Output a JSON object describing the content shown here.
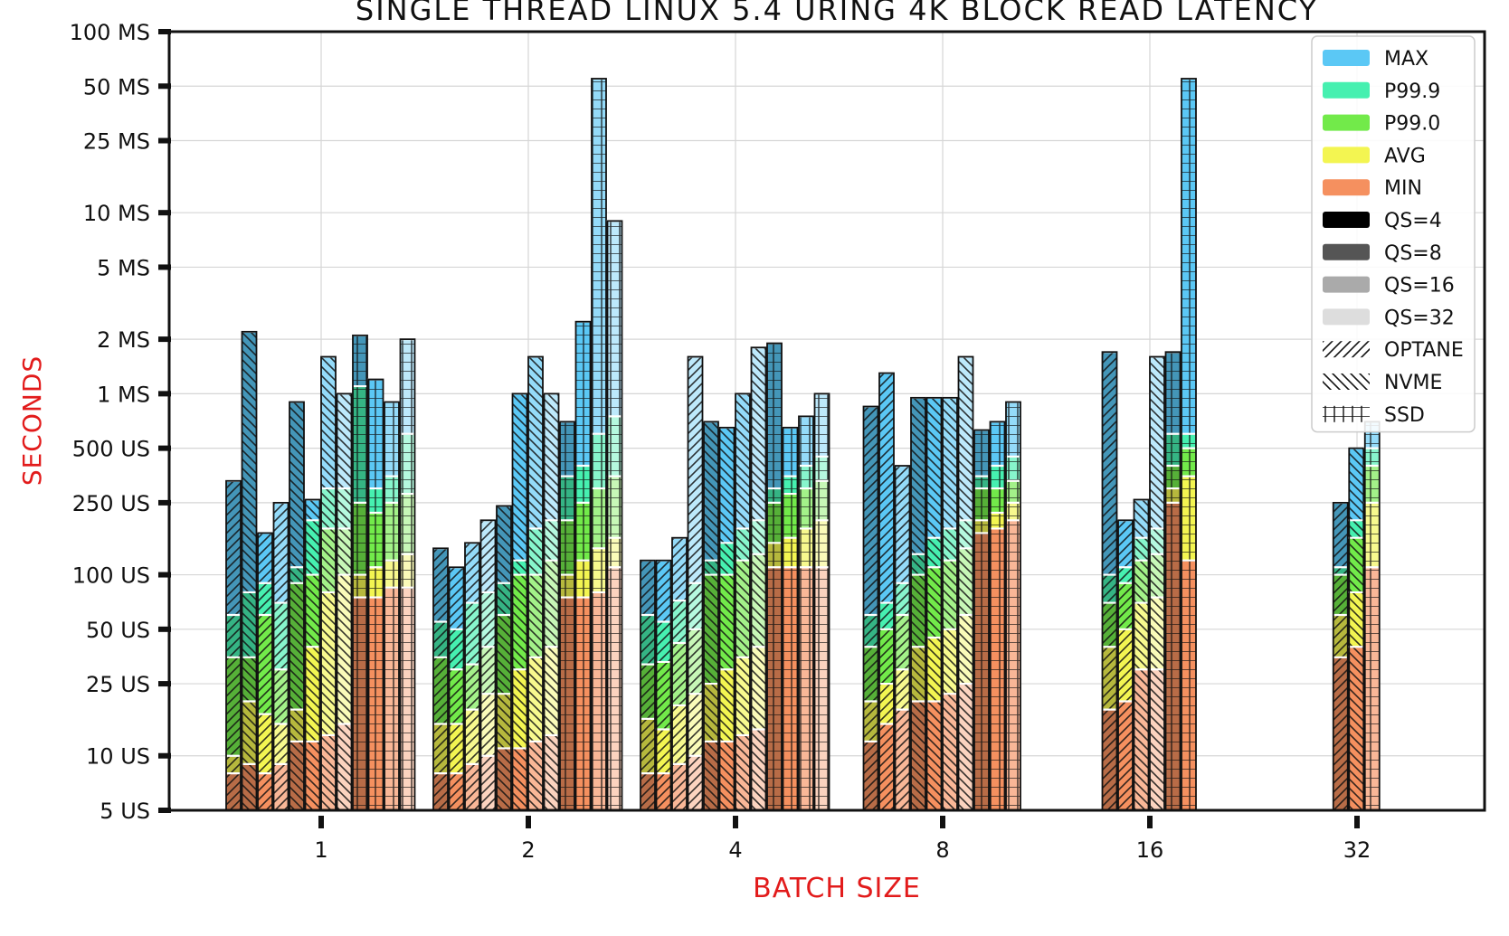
{
  "chart_data": {
    "type": "bar",
    "title": "SINGLE THREAD LINUX 5.4 URING 4K BLOCK READ LATENCY",
    "xlabel": "BATCH SIZE",
    "ylabel": "SECONDS",
    "y_scale": "log",
    "ylim": [
      5e-06,
      0.1
    ],
    "y_ticks": [
      {
        "value": 0.1,
        "label": "100 MS"
      },
      {
        "value": 0.05,
        "label": "50 MS"
      },
      {
        "value": 0.025,
        "label": "25 MS"
      },
      {
        "value": 0.01,
        "label": "10 MS"
      },
      {
        "value": 0.005,
        "label": "5 MS"
      },
      {
        "value": 0.002,
        "label": "2 MS"
      },
      {
        "value": 0.001,
        "label": "1 MS"
      },
      {
        "value": 0.0005,
        "label": "500 US"
      },
      {
        "value": 0.00025,
        "label": "250 US"
      },
      {
        "value": 0.0001,
        "label": "100 US"
      },
      {
        "value": 5e-05,
        "label": "50 US"
      },
      {
        "value": 2.5e-05,
        "label": "25 US"
      },
      {
        "value": 1e-05,
        "label": "10 US"
      },
      {
        "value": 5e-06,
        "label": "5 US"
      }
    ],
    "categories": [
      "1",
      "2",
      "4",
      "8",
      "16",
      "32"
    ],
    "grid": true,
    "legend_position": "top-right",
    "legend": [
      {
        "label": "MAX",
        "kind": "color",
        "color": "#5bc8f5"
      },
      {
        "label": "P99.9",
        "kind": "color",
        "color": "#46f0b0"
      },
      {
        "label": "P99.0",
        "kind": "color",
        "color": "#72ea4a"
      },
      {
        "label": "AVG",
        "kind": "color",
        "color": "#f3f551"
      },
      {
        "label": "MIN",
        "kind": "color",
        "color": "#f5905f"
      },
      {
        "label": "QS=4",
        "kind": "color",
        "color": "#000000"
      },
      {
        "label": "QS=8",
        "kind": "color",
        "color": "#555555"
      },
      {
        "label": "QS=16",
        "kind": "color",
        "color": "#aaaaaa"
      },
      {
        "label": "QS=32",
        "kind": "color",
        "color": "#dddddd"
      },
      {
        "label": "OPTANE",
        "kind": "hatch",
        "hatch": "fwd"
      },
      {
        "label": "NVME",
        "kind": "hatch",
        "hatch": "back"
      },
      {
        "label": "SSD",
        "kind": "hatch",
        "hatch": "grid"
      }
    ],
    "series": [
      {
        "batch": "1",
        "qs": 4,
        "device": "OPTANE",
        "min": 8e-06,
        "avg": 1e-05,
        "p99": 3.5e-05,
        "p999": 6e-05,
        "max": 0.00033
      },
      {
        "batch": "1",
        "qs": 4,
        "device": "NVME",
        "min": 9e-06,
        "avg": 2e-05,
        "p99": 3.5e-05,
        "p999": 8e-05,
        "max": 0.0022
      },
      {
        "batch": "1",
        "qs": 8,
        "device": "OPTANE",
        "min": 8e-06,
        "avg": 1.7e-05,
        "p99": 6e-05,
        "p999": 9e-05,
        "max": 0.00017
      },
      {
        "batch": "1",
        "qs": 16,
        "device": "OPTANE",
        "min": 9e-06,
        "avg": 1.5e-05,
        "p99": 3e-05,
        "p999": 7e-05,
        "max": 0.00025
      },
      {
        "batch": "1",
        "qs": 4,
        "device": "NVME",
        "min": 1.2e-05,
        "avg": 1.8e-05,
        "p99": 9e-05,
        "p999": 0.00011,
        "max": 0.0009
      },
      {
        "batch": "1",
        "qs": 8,
        "device": "NVME",
        "min": 1.2e-05,
        "avg": 4e-05,
        "p99": 0.0001,
        "p999": 0.0002,
        "max": 0.00026
      },
      {
        "batch": "1",
        "qs": 16,
        "device": "NVME",
        "min": 1.3e-05,
        "avg": 8e-05,
        "p99": 0.00018,
        "p999": 0.0003,
        "max": 0.0016
      },
      {
        "batch": "1",
        "qs": 32,
        "device": "NVME",
        "min": 1.5e-05,
        "avg": 0.0001,
        "p99": 0.00018,
        "p999": 0.0003,
        "max": 0.001
      },
      {
        "batch": "1",
        "qs": 4,
        "device": "SSD",
        "min": 7.5e-05,
        "avg": 0.0001,
        "p99": 0.00025,
        "p999": 0.0011,
        "max": 0.0021
      },
      {
        "batch": "1",
        "qs": 8,
        "device": "SSD",
        "min": 7.5e-05,
        "avg": 0.00011,
        "p99": 0.00022,
        "p999": 0.0003,
        "max": 0.0012
      },
      {
        "batch": "1",
        "qs": 16,
        "device": "SSD",
        "min": 8.5e-05,
        "avg": 0.00012,
        "p99": 0.00025,
        "p999": 0.00035,
        "max": 0.0009
      },
      {
        "batch": "1",
        "qs": 32,
        "device": "SSD",
        "min": 8.5e-05,
        "avg": 0.00013,
        "p99": 0.00028,
        "p999": 0.0006,
        "max": 0.002
      },
      {
        "batch": "2",
        "qs": 4,
        "device": "OPTANE",
        "min": 8e-06,
        "avg": 1.5e-05,
        "p99": 3.5e-05,
        "p999": 5.5e-05,
        "max": 0.00014
      },
      {
        "batch": "2",
        "qs": 8,
        "device": "OPTANE",
        "min": 8e-06,
        "avg": 1.5e-05,
        "p99": 3e-05,
        "p999": 5e-05,
        "max": 0.00011
      },
      {
        "batch": "2",
        "qs": 16,
        "device": "OPTANE",
        "min": 9e-06,
        "avg": 1.8e-05,
        "p99": 3.2e-05,
        "p999": 7e-05,
        "max": 0.00015
      },
      {
        "batch": "2",
        "qs": 32,
        "device": "OPTANE",
        "min": 1e-05,
        "avg": 2.2e-05,
        "p99": 4e-05,
        "p999": 8e-05,
        "max": 0.0002
      },
      {
        "batch": "2",
        "qs": 4,
        "device": "NVME",
        "min": 1.1e-05,
        "avg": 2.2e-05,
        "p99": 6e-05,
        "p999": 9e-05,
        "max": 0.00024
      },
      {
        "batch": "2",
        "qs": 8,
        "device": "NVME",
        "min": 1.1e-05,
        "avg": 3e-05,
        "p99": 0.0001,
        "p999": 0.00012,
        "max": 0.001
      },
      {
        "batch": "2",
        "qs": 16,
        "device": "NVME",
        "min": 1.2e-05,
        "avg": 3.5e-05,
        "p99": 0.0001,
        "p999": 0.00018,
        "max": 0.0016
      },
      {
        "batch": "2",
        "qs": 32,
        "device": "NVME",
        "min": 1.3e-05,
        "avg": 4e-05,
        "p99": 0.00012,
        "p999": 0.0002,
        "max": 0.001
      },
      {
        "batch": "2",
        "qs": 4,
        "device": "SSD",
        "min": 7.5e-05,
        "avg": 0.0001,
        "p99": 0.0002,
        "p999": 0.00035,
        "max": 0.0007
      },
      {
        "batch": "2",
        "qs": 8,
        "device": "SSD",
        "min": 7.5e-05,
        "avg": 0.00012,
        "p99": 0.00025,
        "p999": 0.0004,
        "max": 0.0025
      },
      {
        "batch": "2",
        "qs": 16,
        "device": "SSD",
        "min": 8e-05,
        "avg": 0.00014,
        "p99": 0.0003,
        "p999": 0.0006,
        "max": 0.055
      },
      {
        "batch": "2",
        "qs": 32,
        "device": "SSD",
        "min": 0.00011,
        "avg": 0.00016,
        "p99": 0.00035,
        "p999": 0.00075,
        "max": 0.009
      },
      {
        "batch": "4",
        "qs": 4,
        "device": "OPTANE",
        "min": 8e-06,
        "avg": 1.6e-05,
        "p99": 3.2e-05,
        "p999": 6e-05,
        "max": 0.00012
      },
      {
        "batch": "4",
        "qs": 8,
        "device": "OPTANE",
        "min": 8e-06,
        "avg": 1.4e-05,
        "p99": 3.3e-05,
        "p999": 5.5e-05,
        "max": 0.00012
      },
      {
        "batch": "4",
        "qs": 16,
        "device": "OPTANE",
        "min": 9e-06,
        "avg": 1.9e-05,
        "p99": 4.2e-05,
        "p999": 7.2e-05,
        "max": 0.00016
      },
      {
        "batch": "4",
        "qs": 32,
        "device": "OPTANE",
        "min": 1e-05,
        "avg": 2.2e-05,
        "p99": 5e-05,
        "p999": 9e-05,
        "max": 0.0016
      },
      {
        "batch": "4",
        "qs": 4,
        "device": "NVME",
        "min": 1.2e-05,
        "avg": 2.5e-05,
        "p99": 0.0001,
        "p999": 0.00012,
        "max": 0.0007
      },
      {
        "batch": "4",
        "qs": 8,
        "device": "NVME",
        "min": 1.2e-05,
        "avg": 3e-05,
        "p99": 0.0001,
        "p999": 0.00015,
        "max": 0.00065
      },
      {
        "batch": "4",
        "qs": 16,
        "device": "NVME",
        "min": 1.3e-05,
        "avg": 3.5e-05,
        "p99": 0.00012,
        "p999": 0.00018,
        "max": 0.001
      },
      {
        "batch": "4",
        "qs": 32,
        "device": "NVME",
        "min": 1.4e-05,
        "avg": 4e-05,
        "p99": 0.00013,
        "p999": 0.0002,
        "max": 0.0018
      },
      {
        "batch": "4",
        "qs": 4,
        "device": "SSD",
        "min": 0.00011,
        "avg": 0.00015,
        "p99": 0.00025,
        "p999": 0.0003,
        "max": 0.0019
      },
      {
        "batch": "4",
        "qs": 8,
        "device": "SSD",
        "min": 0.00011,
        "avg": 0.00016,
        "p99": 0.00028,
        "p999": 0.00035,
        "max": 0.00065
      },
      {
        "batch": "4",
        "qs": 16,
        "device": "SSD",
        "min": 0.00011,
        "avg": 0.00018,
        "p99": 0.0003,
        "p999": 0.0004,
        "max": 0.00075
      },
      {
        "batch": "4",
        "qs": 32,
        "device": "SSD",
        "min": 0.00011,
        "avg": 0.0002,
        "p99": 0.00033,
        "p999": 0.00045,
        "max": 0.001
      },
      {
        "batch": "8",
        "qs": 4,
        "device": "OPTANE",
        "min": 1.2e-05,
        "avg": 2e-05,
        "p99": 4e-05,
        "p999": 6e-05,
        "max": 0.00085
      },
      {
        "batch": "8",
        "qs": 8,
        "device": "OPTANE",
        "min": 1.5e-05,
        "avg": 2.5e-05,
        "p99": 5e-05,
        "p999": 7e-05,
        "max": 0.0013
      },
      {
        "batch": "8",
        "qs": 16,
        "device": "OPTANE",
        "min": 1.8e-05,
        "avg": 3e-05,
        "p99": 6e-05,
        "p999": 9e-05,
        "max": 0.0004
      },
      {
        "batch": "8",
        "qs": 4,
        "device": "NVME",
        "min": 2e-05,
        "avg": 4e-05,
        "p99": 0.0001,
        "p999": 0.00013,
        "max": 0.00095
      },
      {
        "batch": "8",
        "qs": 8,
        "device": "NVME",
        "min": 2e-05,
        "avg": 4.5e-05,
        "p99": 0.00011,
        "p999": 0.00016,
        "max": 0.00095
      },
      {
        "batch": "8",
        "qs": 16,
        "device": "NVME",
        "min": 2.2e-05,
        "avg": 5e-05,
        "p99": 0.00012,
        "p999": 0.00018,
        "max": 0.00095
      },
      {
        "batch": "8",
        "qs": 32,
        "device": "NVME",
        "min": 2.5e-05,
        "avg": 6e-05,
        "p99": 0.00014,
        "p999": 0.0002,
        "max": 0.0016
      },
      {
        "batch": "8",
        "qs": 4,
        "device": "SSD",
        "min": 0.00017,
        "avg": 0.0002,
        "p99": 0.0003,
        "p999": 0.00035,
        "max": 0.00063
      },
      {
        "batch": "8",
        "qs": 8,
        "device": "SSD",
        "min": 0.00018,
        "avg": 0.00022,
        "p99": 0.0003,
        "p999": 0.0004,
        "max": 0.0007
      },
      {
        "batch": "8",
        "qs": 16,
        "device": "SSD",
        "min": 0.0002,
        "avg": 0.00025,
        "p99": 0.00033,
        "p999": 0.00045,
        "max": 0.0009
      },
      {
        "batch": "16",
        "qs": 4,
        "device": "OPTANE",
        "min": 1.8e-05,
        "avg": 4e-05,
        "p99": 7e-05,
        "p999": 0.0001,
        "max": 0.0017
      },
      {
        "batch": "16",
        "qs": 8,
        "device": "OPTANE",
        "min": 2e-05,
        "avg": 5e-05,
        "p99": 9e-05,
        "p999": 0.00011,
        "max": 0.0002
      },
      {
        "batch": "16",
        "qs": 16,
        "device": "NVME",
        "min": 3e-05,
        "avg": 7e-05,
        "p99": 0.00012,
        "p999": 0.00016,
        "max": 0.00026
      },
      {
        "batch": "16",
        "qs": 32,
        "device": "NVME",
        "min": 3e-05,
        "avg": 7.5e-05,
        "p99": 0.00013,
        "p999": 0.00018,
        "max": 0.0016
      },
      {
        "batch": "16",
        "qs": 4,
        "device": "SSD",
        "min": 0.00025,
        "avg": 0.0003,
        "p99": 0.0004,
        "p999": 0.0006,
        "max": 0.0017
      },
      {
        "batch": "16",
        "qs": 8,
        "device": "SSD",
        "min": 0.00012,
        "avg": 0.00035,
        "p99": 0.0005,
        "p999": 0.0006,
        "max": 0.055
      },
      {
        "batch": "32",
        "qs": 4,
        "device": "OPTANE",
        "min": 3.5e-05,
        "avg": 6e-05,
        "p99": 0.0001,
        "p999": 0.00011,
        "max": 0.00025
      },
      {
        "batch": "32",
        "qs": 8,
        "device": "NVME",
        "min": 4e-05,
        "avg": 8e-05,
        "p99": 0.00016,
        "p999": 0.0002,
        "max": 0.0005
      },
      {
        "batch": "32",
        "qs": 16,
        "device": "SSD",
        "min": 0.00011,
        "avg": 0.00025,
        "p99": 0.0004,
        "p999": 0.0005,
        "max": 0.0007
      }
    ]
  }
}
